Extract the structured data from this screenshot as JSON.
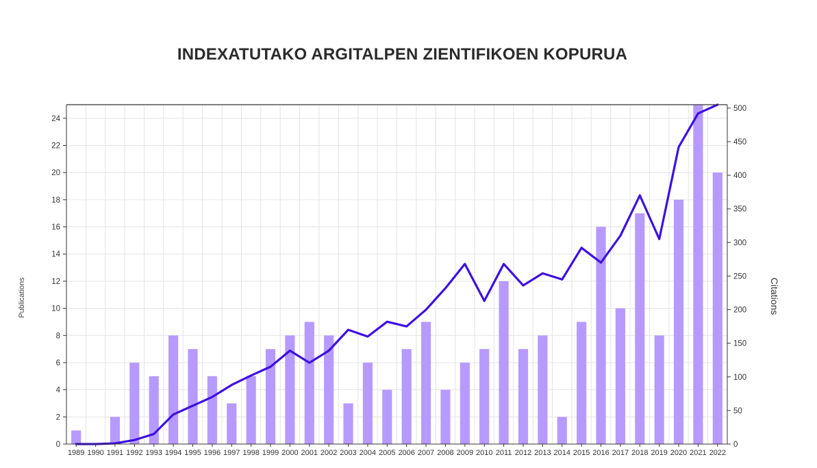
{
  "title": "INDEXATUTAKO ARGITALPEN ZIENTIFIKOEN KOPURUA",
  "chart_data": {
    "type": "bar",
    "categories": [
      "1989",
      "1990",
      "1991",
      "1992",
      "1993",
      "1994",
      "1995",
      "1996",
      "1997",
      "1998",
      "1999",
      "2000",
      "2001",
      "2002",
      "2003",
      "2004",
      "2005",
      "2006",
      "2007",
      "2008",
      "2009",
      "2010",
      "2011",
      "2012",
      "2013",
      "2014",
      "2015",
      "2016",
      "2017",
      "2018",
      "2019",
      "2020",
      "2021",
      "2022"
    ],
    "series": [
      {
        "name": "Publications",
        "type": "bar",
        "axis": "left",
        "color": "#b79aff",
        "values": [
          1,
          0,
          2,
          6,
          5,
          8,
          7,
          5,
          3,
          5,
          7,
          8,
          9,
          8,
          3,
          6,
          4,
          7,
          9,
          4,
          6,
          7,
          12,
          7,
          8,
          2,
          9,
          16,
          10,
          17,
          8,
          18,
          25,
          20
        ]
      },
      {
        "name": "Citations",
        "type": "line",
        "axis": "right",
        "color": "#3d0fe0",
        "values": [
          0,
          0,
          1,
          6,
          15,
          44,
          57,
          70,
          88,
          102,
          115,
          139,
          121,
          139,
          170,
          160,
          182,
          175,
          200,
          232,
          268,
          213,
          268,
          236,
          254,
          245,
          292,
          270,
          310,
          370,
          305,
          442,
          492,
          505
        ]
      }
    ],
    "ylabel": "Publications",
    "y2label": "Citations",
    "ylim": [
      0,
      25
    ],
    "y2lim": [
      0,
      505
    ],
    "yticks": [
      0,
      2,
      4,
      6,
      8,
      10,
      12,
      14,
      16,
      18,
      20,
      22,
      24
    ],
    "y2ticks": [
      0,
      50,
      100,
      150,
      200,
      250,
      300,
      350,
      400,
      450,
      500
    ],
    "grid": true,
    "legend": "none"
  }
}
